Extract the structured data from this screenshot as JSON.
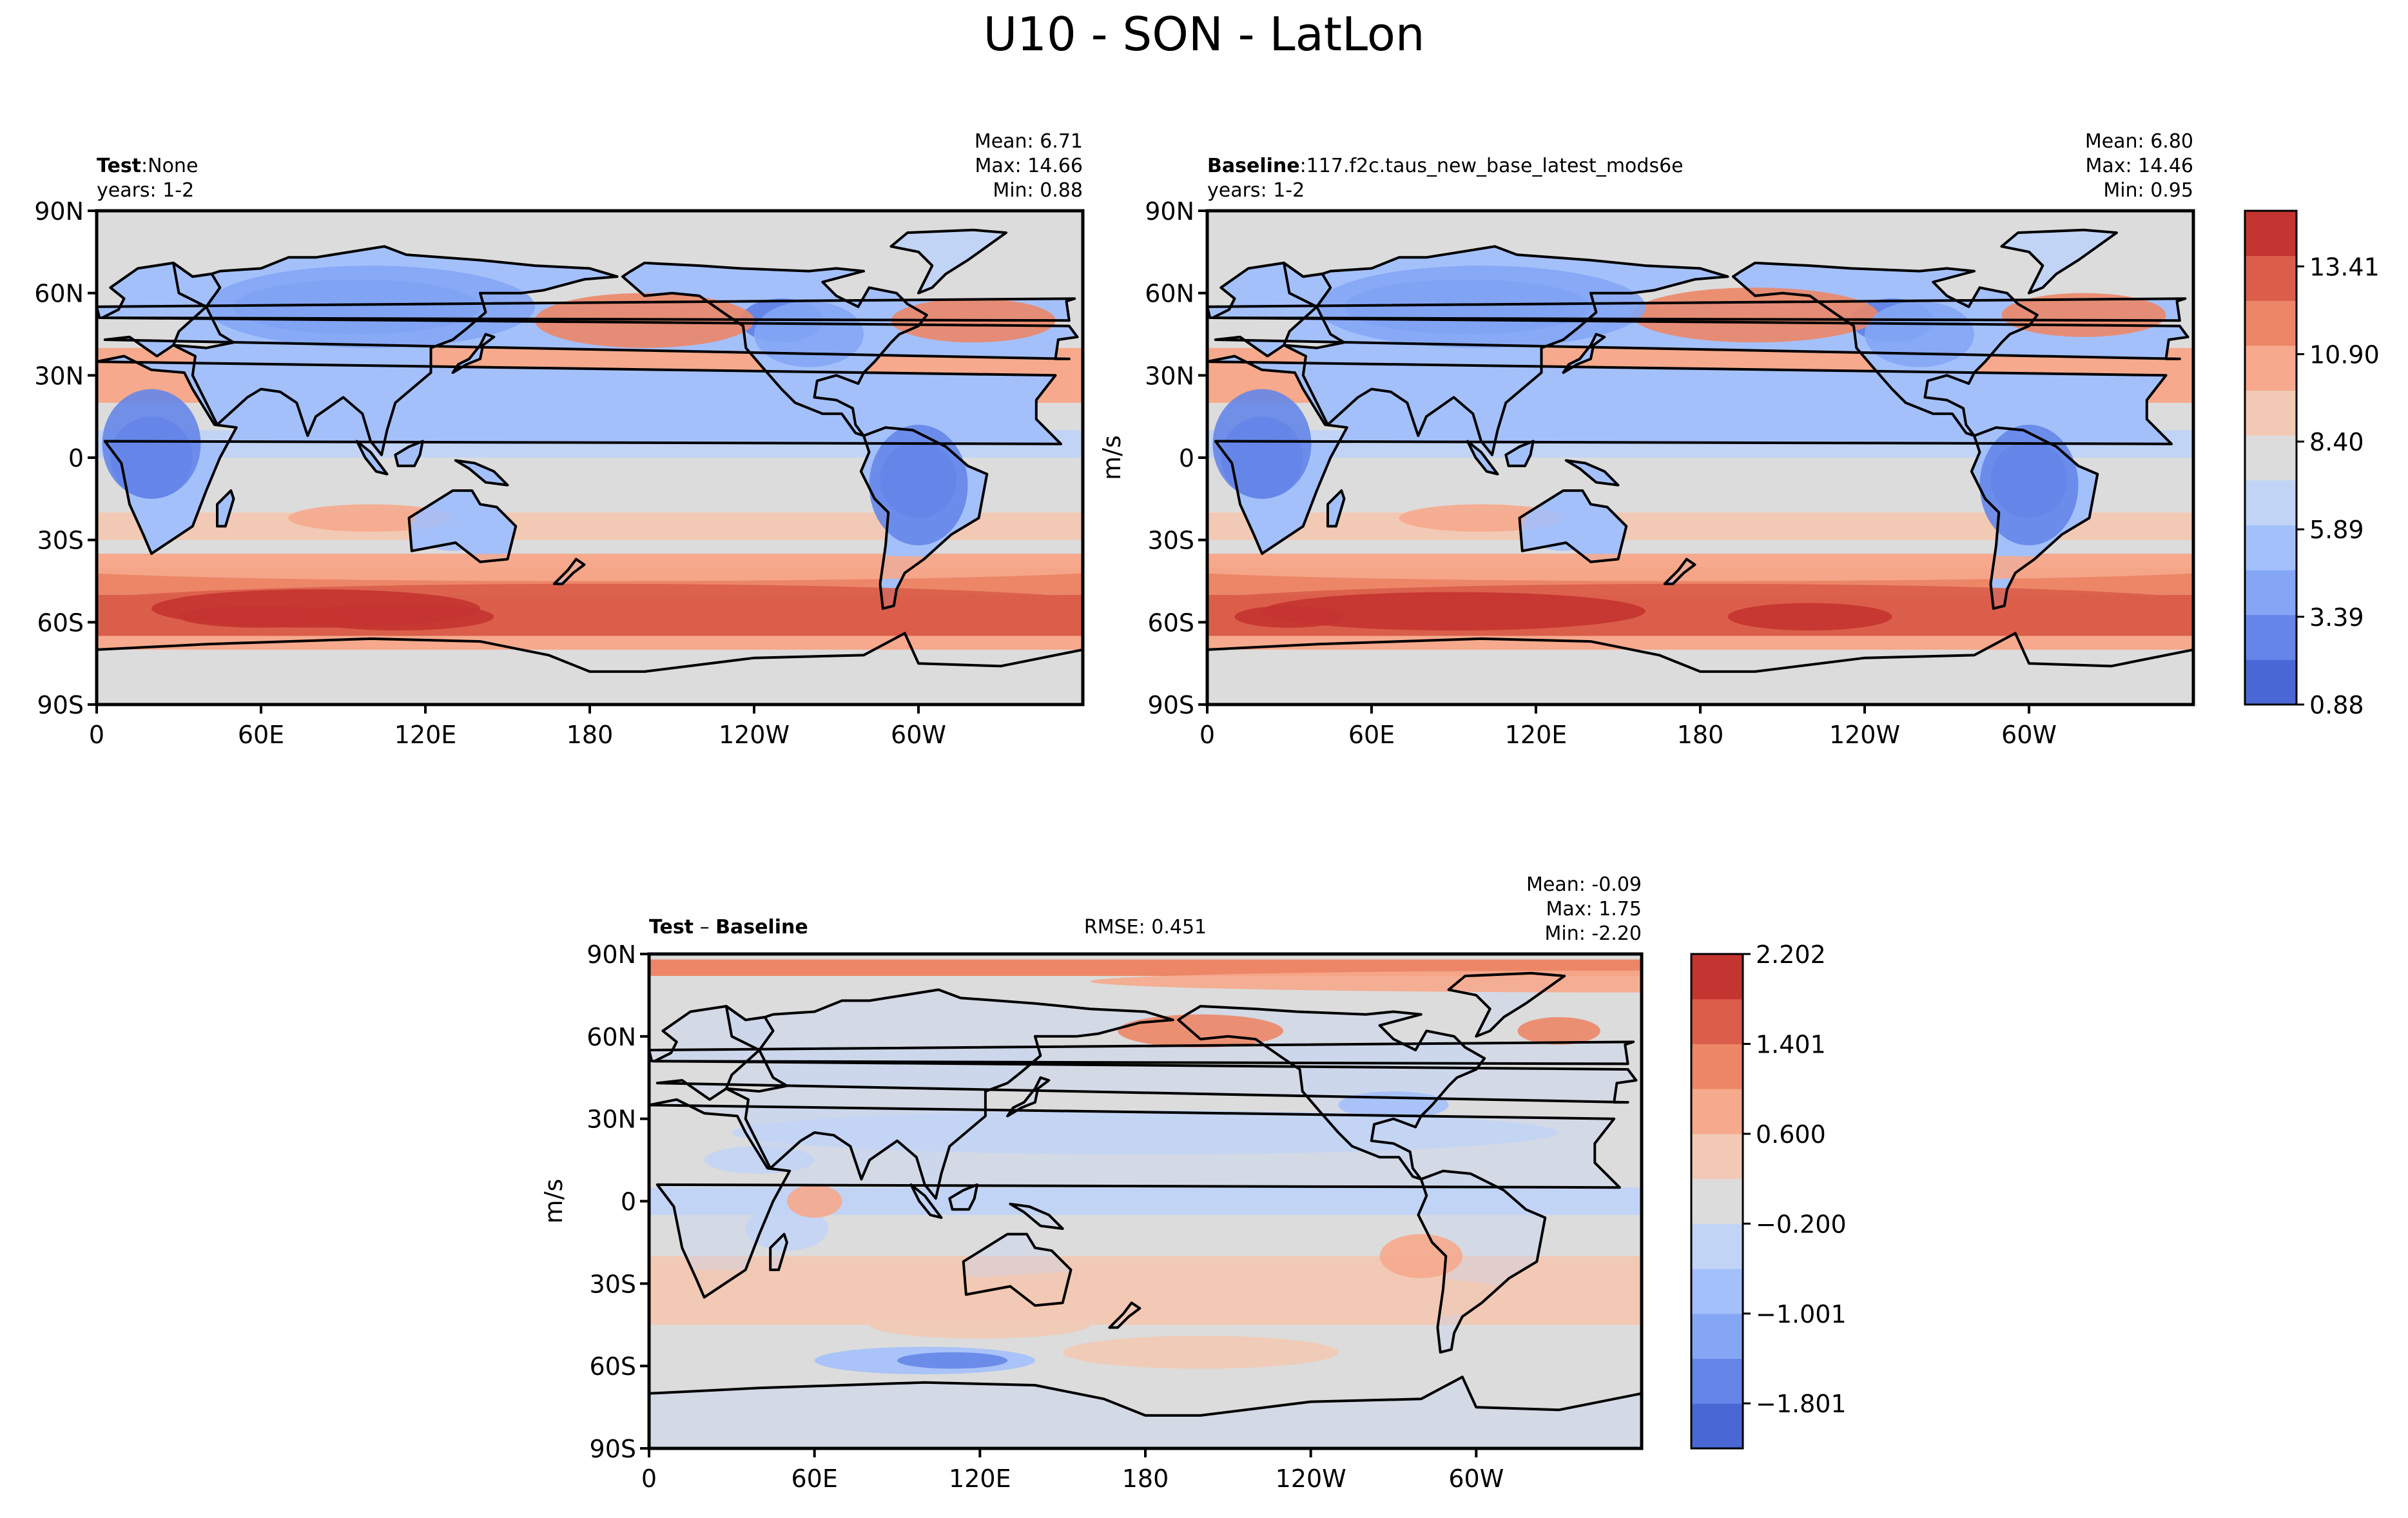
{
  "figure": {
    "title": "U10 - SON - LatLon"
  },
  "colors": {
    "levels_main": [
      "#4a67d6",
      "#6586e8",
      "#84a6f5",
      "#a4c0fb",
      "#c2d4f5",
      "#dcdcdc",
      "#f2c9b4",
      "#f6a98c",
      "#ec8667",
      "#da5e4a",
      "#c43430"
    ],
    "levels_diff": [
      "#4a67d6",
      "#6586e8",
      "#84a6f5",
      "#a4c0fb",
      "#c2d4f5",
      "#dcdcdc",
      "#f2c9b4",
      "#f6a98c",
      "#ec8667",
      "#da5e4a",
      "#c43430"
    ],
    "coastline": "#000000",
    "frame": "#000000"
  },
  "chart_data": [
    {
      "type": "heatmap",
      "panel": "test",
      "label_bold": "Test",
      "label_sep": ":",
      "label_value": "None",
      "years": "years: 1-2",
      "stats": [
        "Mean:  6.71",
        "Max: 14.66",
        "Min:  0.88"
      ],
      "ylabel": "",
      "xticks": [
        "0",
        "60E",
        "120E",
        "180",
        "120W",
        "60W"
      ],
      "xtick_values": [
        0,
        60,
        120,
        180,
        240,
        300
      ],
      "xlim": [
        0,
        360
      ],
      "yticks": [
        "90N",
        "60N",
        "30N",
        "0",
        "30S",
        "60S",
        "90S"
      ],
      "ytick_values": [
        90,
        60,
        30,
        0,
        -30,
        -60,
        -90
      ],
      "ylim": [
        -90,
        90
      ],
      "units": "m/s",
      "mean": 6.71,
      "max": 14.66,
      "min": 0.88
    },
    {
      "type": "heatmap",
      "panel": "baseline",
      "label_bold": "Baseline",
      "label_sep": ":",
      "label_value": "117.f2c.taus_new_base_latest_mods6e",
      "years": "years: 1-2",
      "stats": [
        "Mean:  6.80",
        "Max: 14.46",
        "Min:  0.95"
      ],
      "ylabel": "m/s",
      "xticks": [
        "0",
        "60E",
        "120E",
        "180",
        "120W",
        "60W"
      ],
      "xtick_values": [
        0,
        60,
        120,
        180,
        240,
        300
      ],
      "xlim": [
        0,
        360
      ],
      "yticks": [
        "90N",
        "60N",
        "30N",
        "0",
        "30S",
        "60S",
        "90S"
      ],
      "ytick_values": [
        90,
        60,
        30,
        0,
        -30,
        -60,
        -90
      ],
      "ylim": [
        -90,
        90
      ],
      "units": "m/s",
      "mean": 6.8,
      "max": 14.46,
      "min": 0.95,
      "colorbar": {
        "ticks": [
          "13.41",
          "10.90",
          "8.40",
          "5.89",
          "3.39",
          "0.88"
        ],
        "tick_values": [
          13.41,
          10.9,
          8.4,
          5.89,
          3.39,
          0.88
        ],
        "range": [
          0.88,
          15.0
        ]
      }
    },
    {
      "type": "heatmap",
      "panel": "difference",
      "label_bold": "Test",
      "label_sep": " – ",
      "label_bold2": "Baseline",
      "rmse": "RMSE: 0.451",
      "stats": [
        "Mean: -0.09",
        "Max:  1.75",
        "Min: -2.20"
      ],
      "ylabel": "m/s",
      "xticks": [
        "0",
        "60E",
        "120E",
        "180",
        "120W",
        "60W"
      ],
      "xtick_values": [
        0,
        60,
        120,
        180,
        240,
        300
      ],
      "xlim": [
        0,
        360
      ],
      "yticks": [
        "90N",
        "60N",
        "30N",
        "0",
        "30S",
        "60S",
        "90S"
      ],
      "ytick_values": [
        90,
        60,
        30,
        0,
        -30,
        -60,
        -90
      ],
      "ylim": [
        -90,
        90
      ],
      "mean": -0.09,
      "max": 1.75,
      "min": -2.2,
      "colorbar": {
        "ticks": [
          "2.202",
          "1.401",
          "0.600",
          "−0.200",
          "−1.001",
          "−1.801"
        ],
        "tick_values": [
          2.202,
          1.401,
          0.6,
          -0.2,
          -1.001,
          -1.801
        ],
        "range": [
          -2.202,
          2.202
        ]
      }
    }
  ]
}
